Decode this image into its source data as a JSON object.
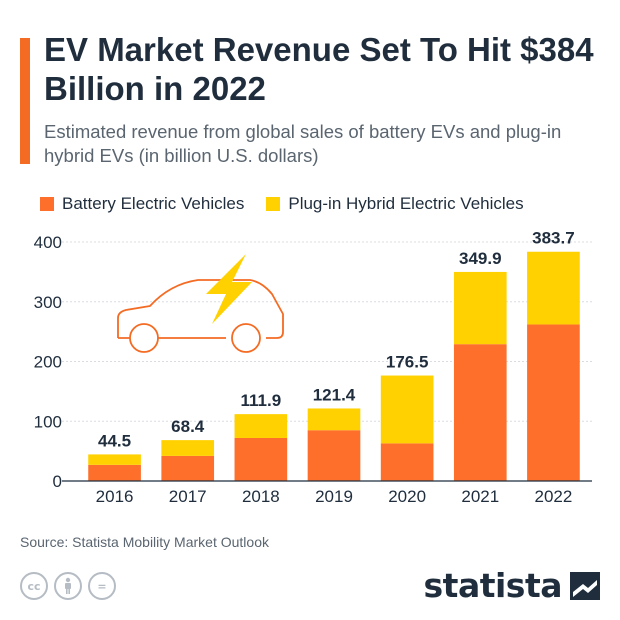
{
  "header": {
    "title": "EV Market Revenue Set To Hit $384 Billion in 2022",
    "subtitle": "Estimated revenue from global sales of battery EVs and plug-in hybrid EVs (in billion U.S. dollars)"
  },
  "colors": {
    "accent": "#f46b24",
    "bev": "#fd6f2b",
    "phev": "#ffd100",
    "grid": "#d9dde1",
    "car_outline": "#f46b24",
    "bolt": "#ffd100"
  },
  "icons": {
    "illustration": "electric-car-icon",
    "license": [
      "creative-commons-icon",
      "attribution-icon",
      "no-derivatives-icon"
    ],
    "brand": "statista-logo-icon"
  },
  "footer": {
    "source": "Source: Statista Mobility Market Outlook",
    "license_labels": [
      "cc",
      "",
      "="
    ],
    "brand": "statista"
  },
  "chart_data": {
    "type": "bar",
    "stacked": true,
    "categories": [
      "2016",
      "2017",
      "2018",
      "2019",
      "2020",
      "2021",
      "2022"
    ],
    "series": [
      {
        "name": "Battery Electric Vehicles",
        "values": [
          27,
          42,
          72,
          85,
          63,
          229,
          262
        ]
      },
      {
        "name": "Plug-in Hybrid Electric Vehicles",
        "values": [
          17.5,
          26.4,
          39.9,
          36.4,
          113.5,
          120.9,
          121.7
        ]
      }
    ],
    "totals": [
      "44.5",
      "68.4",
      "111.9",
      "121.4",
      "176.5",
      "349.9",
      "383.7"
    ],
    "yticks": [
      "0",
      "100",
      "200",
      "300",
      "400"
    ],
    "ylim": [
      0,
      400
    ],
    "grid": true,
    "legend": "top-left"
  }
}
